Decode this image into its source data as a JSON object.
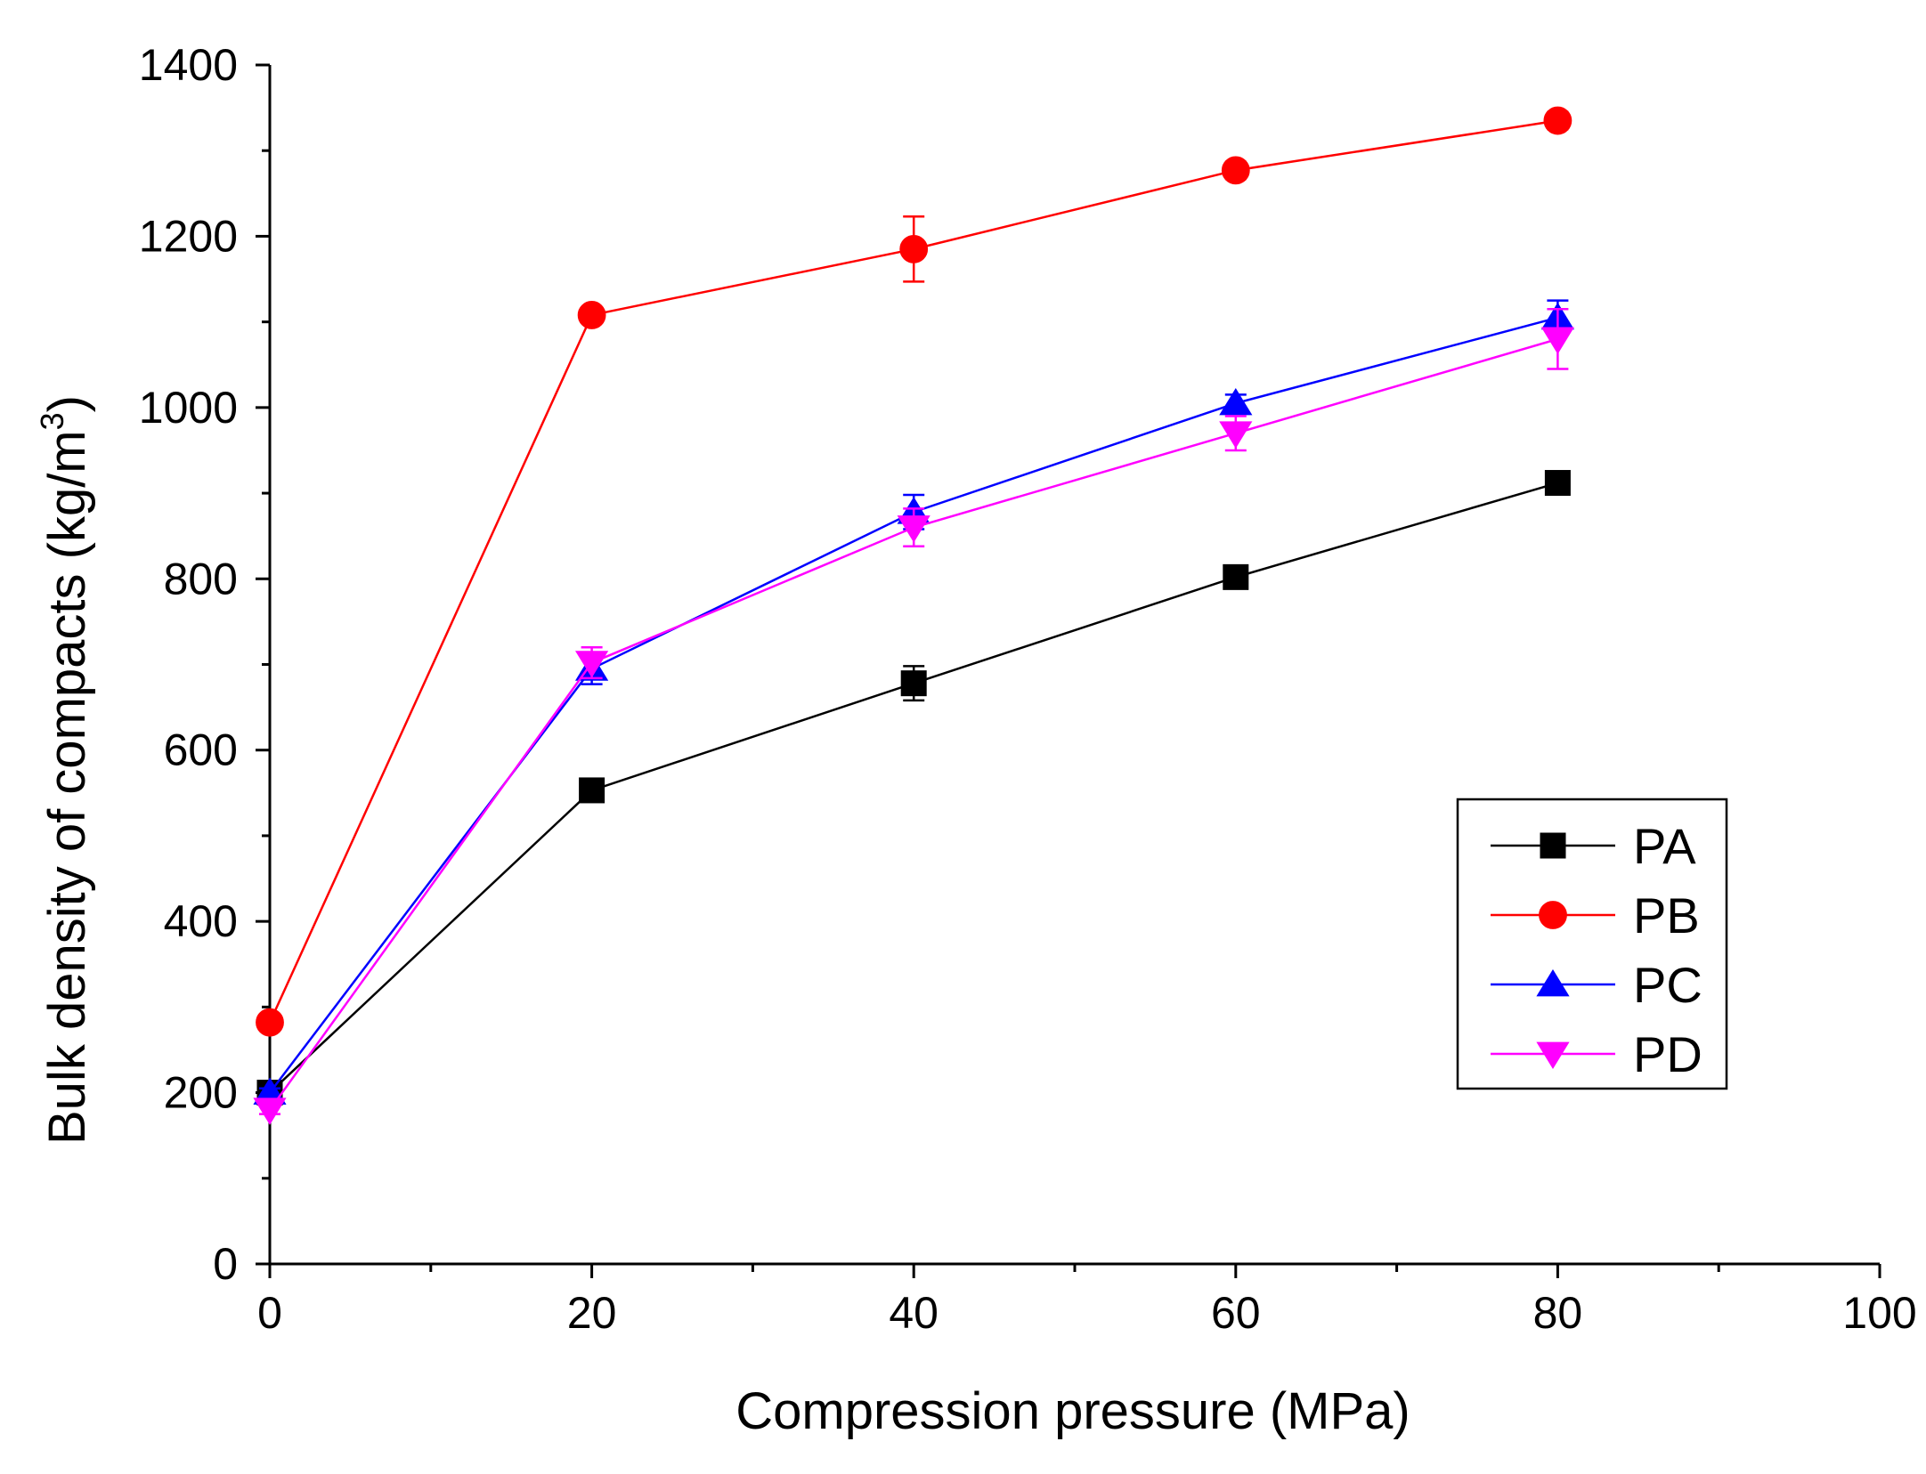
{
  "chart_data": {
    "type": "line",
    "xlabel": "Compression pressure (MPa)",
    "ylabel": "Bulk density of compacts (kg/m",
    "ylabel_superscript": "3",
    "ylabel_suffix": ")",
    "xlim": [
      0,
      100
    ],
    "ylim": [
      0,
      1400
    ],
    "x_ticks": [
      0,
      20,
      40,
      60,
      80,
      100
    ],
    "y_ticks": [
      0,
      200,
      400,
      600,
      800,
      1000,
      1200,
      1400
    ],
    "x_tick_labels": [
      "0",
      "20",
      "40",
      "60",
      "80",
      "100"
    ],
    "y_tick_labels": [
      "0",
      "200",
      "400",
      "600",
      "800",
      "1000",
      "1200",
      "1400"
    ],
    "x_minor_ticks": [
      10,
      30,
      50,
      70,
      90
    ],
    "y_minor_ticks": [
      100,
      300,
      500,
      700,
      900,
      1100,
      1300
    ],
    "grid": false,
    "legend_position": "center-right",
    "x": [
      0,
      20,
      40,
      60,
      80
    ],
    "series": [
      {
        "name": "PA",
        "color": "#000000",
        "marker": "square",
        "values": [
          200,
          553,
          678,
          802,
          912
        ],
        "errors": [
          5,
          10,
          20,
          8,
          10
        ]
      },
      {
        "name": "PB",
        "color": "#ff0000",
        "marker": "circle",
        "values": [
          282,
          1108,
          1185,
          1277,
          1335
        ],
        "errors": [
          5,
          8,
          38,
          10,
          10
        ]
      },
      {
        "name": "PC",
        "color": "#0000ff",
        "marker": "triangle-up",
        "values": [
          200,
          695,
          878,
          1005,
          1105
        ],
        "errors": [
          5,
          18,
          20,
          10,
          20
        ]
      },
      {
        "name": "PD",
        "color": "#ff00ff",
        "marker": "triangle-down",
        "values": [
          180,
          702,
          860,
          970,
          1080
        ],
        "errors": [
          5,
          18,
          22,
          20,
          35
        ]
      }
    ]
  }
}
